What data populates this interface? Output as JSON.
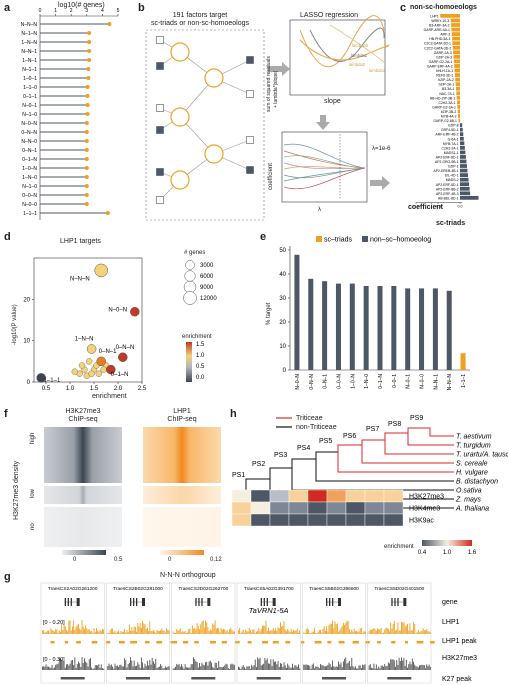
{
  "panels": {
    "a": "a",
    "b": "b",
    "c": "c",
    "d": "d",
    "e": "e",
    "f": "f",
    "g": "g",
    "h": "h"
  },
  "colors": {
    "orange": "#f0a020",
    "gray": "#4d5766",
    "red": "#d9282a",
    "black": "#111111"
  },
  "panel_a": {
    "title": "log10(# genes)",
    "ticks": [
      "0",
      "1",
      "2",
      "3",
      "4",
      "5"
    ],
    "categories": [
      "N–N–N",
      "N–1–N",
      "1–N–N",
      "N–N–1",
      "1–N–1",
      "N–1–1",
      "1–0–1",
      "1–1–0",
      "0–1–1",
      "N–0–1",
      "N–1–0",
      "N–0–N",
      "0–N–N",
      "N–N–0",
      "0–N–1",
      "0–1–N",
      "1–0–N",
      "1–N–0",
      "N–1–0",
      "0–0–N",
      "N–0–0",
      "1–1–1"
    ],
    "values": [
      4.45,
      3.15,
      3.15,
      3.15,
      3.15,
      3.1,
      3.1,
      3.05,
      3.05,
      3.05,
      3.05,
      3.0,
      3.0,
      3.0,
      3.0,
      3.0,
      3.0,
      3.0,
      3.0,
      3.0,
      3.0,
      4.35
    ]
  },
  "panel_b": {
    "title_line1": "191 factors target",
    "title_line2": "sc-triads or non-sc-homoeologs",
    "lasso_title": "LASSO regression",
    "ylab_line1": "sum of squared residuals",
    "ylab_line2": "+ lambda*|slope|",
    "slope_label": "slope",
    "lambda_lines": [
      "lambda0",
      "lambda1",
      "lambda2",
      "lambda3"
    ],
    "coef_label": "coefficient",
    "lambda_symbol": "λ",
    "lambda_value": "λ=1e-6"
  },
  "panel_c": {
    "title": "non-sc-homoeologs",
    "xlab": "coefficient",
    "ticks": [
      "-1.0",
      "-0.5",
      "0.0"
    ],
    "bottom_label": "sc-triads",
    "factors": [
      "LHP1",
      "WRKY-10-3",
      "B3-ARF-3A-2",
      "GARP-ARR-4A-1",
      "ARF-2",
      "HB-PHD-3A-1",
      "C2C2-GATA-3D-1",
      "C2C2-GATA-3D-2",
      "GARP-2A-3",
      "bZIP-2A-3",
      "GARP-G2-2A-1",
      "GARP-ERF-4A-2",
      "bHLH-1A-1",
      "REF6-3D-1",
      "bZIP-2A-2",
      "bZIP-3A-1",
      "B3-3A-1",
      "NAC-7A-1",
      "HB-HD-ZIP-3B-1",
      "C2H2-3A-1",
      "GARP-G2-3A-1",
      "bZIP-3B-2",
      "MYB-4A-2",
      "GARP-G2-6B-1",
      "bZIP-8",
      "GRF4-5D-1",
      "ARF-ERF-4B-2",
      "G-6A-1",
      "MYB-7A-1",
      "C2H2-2A-1",
      "MADS1-1",
      "AP2-ERF-8D-1",
      "AP2-ORG-9B-1",
      "bZIP-1",
      "AP2-EREB-4B-1",
      "EIL-4D-1",
      "MADS-2",
      "AP2-ERF-6D-1",
      "AP2-ERF-8B-2",
      "AP2-ERF-4B-3",
      "HB-BEL-8D-1"
    ]
  },
  "panel_d": {
    "title": "LHP1 targets",
    "ylab": "-log10(P value)",
    "xlab": "enrichment",
    "xticks": [
      "0.5",
      "1.0",
      "1.5",
      "2.0",
      "2.5"
    ],
    "yticks": [
      "0",
      "10",
      "20"
    ],
    "size_legend_title": "# genes",
    "size_legend": [
      "3000",
      "6000",
      "9000",
      "12000"
    ],
    "color_legend_title": "enrichment",
    "color_legend": [
      "1.5",
      "1.0",
      "0.5",
      "0.0"
    ],
    "points": [
      {
        "label": "N–N–N",
        "x": 1.65,
        "y": 27,
        "n": 12000,
        "enr": 1.0
      },
      {
        "label": "N–0–N",
        "x": 2.35,
        "y": 17,
        "n": 3000,
        "enr": 1.9
      },
      {
        "label": "1–N–N",
        "x": 1.45,
        "y": 8,
        "n": 3000,
        "enr": 1.2
      },
      {
        "label": "0–N–1",
        "x": 1.65,
        "y": 5,
        "n": 3000,
        "enr": 1.3
      },
      {
        "label": "0–N–N",
        "x": 2.1,
        "y": 6,
        "n": 3000,
        "enr": 1.7
      },
      {
        "label": "0–1–N",
        "x": 1.85,
        "y": 3,
        "n": 3000,
        "enr": 1.6
      },
      {
        "label": "1–1–1",
        "x": 0.4,
        "y": 1,
        "n": 3000,
        "enr": 0.3
      }
    ]
  },
  "panel_e": {
    "legend": [
      "sc–triads",
      "non–sc–homoeolog"
    ],
    "ylab": "% target",
    "yticks": [
      "0",
      "10",
      "20",
      "30",
      "40",
      "50"
    ],
    "categories": [
      "N–0–N",
      "0–N–N",
      "0–N–1",
      "0–0–N",
      "1–0–N",
      "1–N–0",
      "0–1–N",
      "0–0–1",
      "N–0–1",
      "N–0–0",
      "N–N–1",
      "N–N–N",
      "1–1–1"
    ],
    "values": [
      48,
      38,
      37,
      36,
      36,
      35,
      35,
      35,
      34,
      34,
      34,
      33,
      7
    ],
    "series": [
      "non",
      "non",
      "non",
      "non",
      "non",
      "non",
      "non",
      "non",
      "non",
      "non",
      "non",
      "non",
      "sc"
    ]
  },
  "panel_f": {
    "col1_line1": "H3K27me3",
    "col1_line2": "ChIP-seq",
    "col2_line1": "LHP1",
    "col2_line2": "ChIP-seq",
    "rows": [
      "high",
      "low",
      "no"
    ],
    "ylab": "H3K27me3 density",
    "scale1": [
      "0",
      "0.5"
    ],
    "scale2": [
      "0",
      "0.12"
    ]
  },
  "panel_h": {
    "legend": [
      "Triticeae",
      "non-Triticeae"
    ],
    "nodes": [
      "PS1",
      "PS2",
      "PS3",
      "PS4",
      "PS5",
      "PS6",
      "PS7",
      "PS8",
      "PS9"
    ],
    "species": [
      "T. aestivum",
      "T. turgidum",
      "T. urartu/A. tauschii",
      "S. cereale",
      "H. vulgare",
      "B. distachyon",
      "O.sativa",
      "Z. mays",
      "A. thaliana"
    ],
    "marks": [
      "H3K27me3",
      "H3K4me3",
      "H3K9ac"
    ],
    "heat": [
      [
        1.0,
        0.5,
        0.8,
        1.05,
        1.6,
        1.25,
        1.1,
        1.05,
        1.05
      ],
      [
        1.1,
        1.0,
        0.55,
        0.55,
        0.5,
        0.55,
        0.5,
        0.55,
        0.6
      ],
      [
        1.1,
        0.5,
        0.5,
        0.5,
        0.45,
        0.5,
        0.5,
        0.45,
        0.5
      ]
    ],
    "scale_title": "enrichment",
    "scale": [
      "0.4",
      "1.0",
      "1.6"
    ]
  },
  "panel_g": {
    "title": "N-N-N orthogroup",
    "genes": [
      "TraesCS2A02G261200",
      "TraesCS2B02G281000",
      "TraesCS2D02G262700",
      "TraesCS5A02G391700",
      "TraesCS5B02G396600",
      "TraesCS5D02G401500"
    ],
    "highlight": "TaVRN1-5A",
    "tracks": [
      "gene",
      "LHP1",
      "LHP1 peak",
      "H3K27me3",
      "K27 peak"
    ],
    "range1": "[0 - 0.20]",
    "range2": "[0 - 0.30]"
  }
}
